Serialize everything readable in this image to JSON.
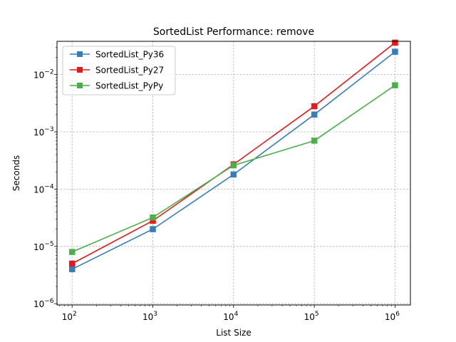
{
  "chart_data": {
    "type": "line",
    "title": "SortedList Performance: remove",
    "xlabel": "List Size",
    "ylabel": "Seconds",
    "x_scale": "log",
    "y_scale": "log",
    "x": [
      100,
      1000,
      10000,
      100000,
      1000000
    ],
    "xlim": [
      65,
      1550000
    ],
    "ylim": [
      9.5e-07,
      0.038
    ],
    "x_ticks": [
      {
        "value": 100,
        "base": "10",
        "exp": "2"
      },
      {
        "value": 1000,
        "base": "10",
        "exp": "3"
      },
      {
        "value": 10000,
        "base": "10",
        "exp": "4"
      },
      {
        "value": 100000,
        "base": "10",
        "exp": "5"
      },
      {
        "value": 1000000,
        "base": "10",
        "exp": "6"
      }
    ],
    "y_ticks": [
      {
        "value": 1e-06,
        "base": "10",
        "exp": "−6"
      },
      {
        "value": 1e-05,
        "base": "10",
        "exp": "−5"
      },
      {
        "value": 0.0001,
        "base": "10",
        "exp": "−4"
      },
      {
        "value": 0.001,
        "base": "10",
        "exp": "−3"
      },
      {
        "value": 0.01,
        "base": "10",
        "exp": "−2"
      }
    ],
    "grid": true,
    "legend_position": "top-left",
    "series": [
      {
        "name": "SortedList_Py36",
        "color": "#377eb8",
        "values": [
          4e-06,
          2e-05,
          0.00018,
          0.002,
          0.025
        ]
      },
      {
        "name": "SortedList_Py27",
        "color": "#e41a1c",
        "values": [
          5e-06,
          2.8e-05,
          0.00027,
          0.0028,
          0.036
        ]
      },
      {
        "name": "SortedList_PyPy",
        "color": "#4daf4a",
        "values": [
          8e-06,
          3.2e-05,
          0.00026,
          0.0007,
          0.0065
        ]
      }
    ]
  }
}
